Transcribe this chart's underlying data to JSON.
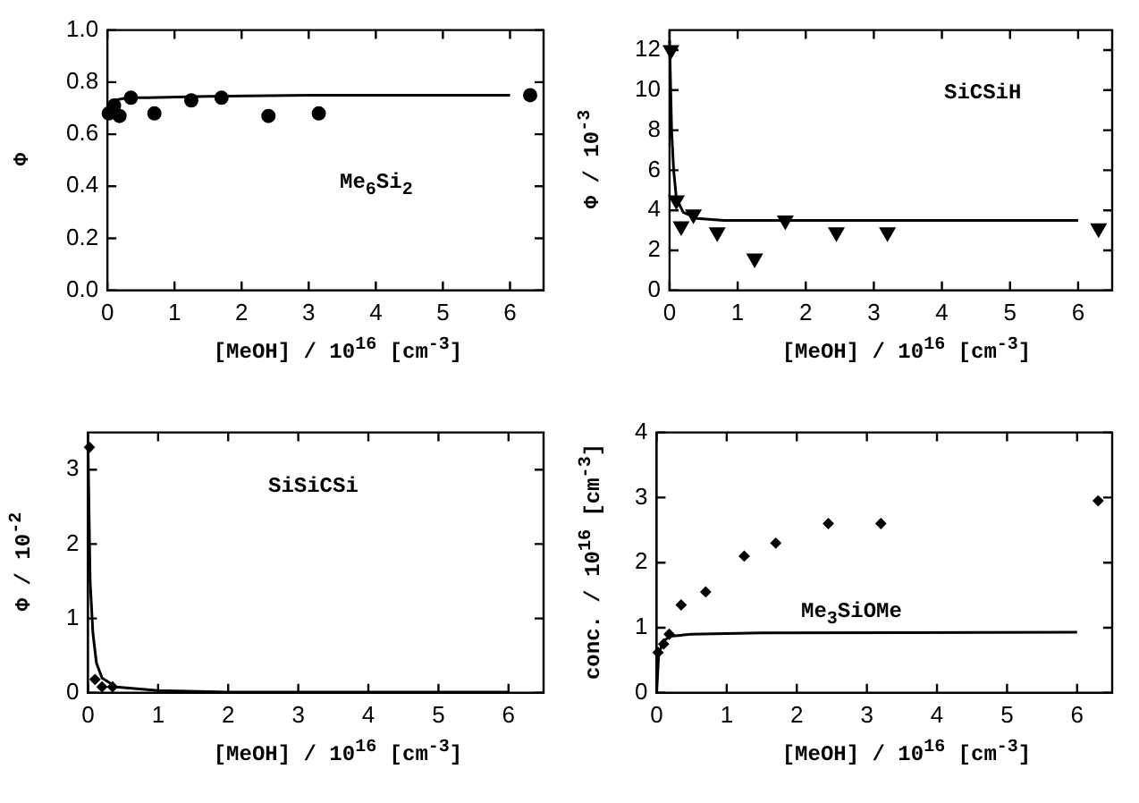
{
  "chart_data": [
    {
      "type": "scatter",
      "xlabel": "[MeOH] / 10$^{16}$ [cm$^{-3}$]",
      "ylabel": "Φ",
      "annotations": [
        "Me$_{6}$Si$_{2}$"
      ],
      "xlim": [
        0,
        6.5
      ],
      "xticks": [
        0,
        1,
        2,
        3,
        4,
        5,
        6
      ],
      "ylim": [
        0,
        1
      ],
      "yticks": [
        {
          "value": 0,
          "label": "0.0"
        },
        {
          "value": 0.2,
          "label": "0.2"
        },
        {
          "value": 0.4,
          "label": "0.4"
        },
        {
          "value": 0.6,
          "label": "0.6"
        },
        {
          "value": 0.8,
          "label": "0.8"
        },
        {
          "value": 1,
          "label": "1.0"
        }
      ],
      "grid": false,
      "legend": false,
      "series": [
        {
          "type": "scatter",
          "marker": "circle",
          "color": "#000000",
          "x": [
            0.02,
            0.1,
            0.18,
            0.35,
            0.7,
            1.25,
            1.7,
            2.4,
            3.15,
            6.3
          ],
          "values": [
            0.68,
            0.71,
            0.67,
            0.74,
            0.68,
            0.73,
            0.74,
            0.67,
            0.68,
            0.75
          ]
        },
        {
          "type": "line",
          "marker": "none",
          "color": "#000000",
          "x": [
            0,
            0.05,
            0.1,
            0.3,
            0.6,
            1.5,
            3,
            6
          ],
          "values": [
            0.69,
            0.72,
            0.73,
            0.74,
            0.74,
            0.745,
            0.75,
            0.75
          ]
        }
      ]
    },
    {
      "type": "scatter",
      "xlabel": "[MeOH] / 10$^{16}$ [cm$^{-3}$]",
      "ylabel": "Φ / 10$^{-3}$",
      "annotations": [
        "SiCSiH"
      ],
      "xlim": [
        0,
        6.5
      ],
      "xticks": [
        0,
        1,
        2,
        3,
        4,
        5,
        6
      ],
      "ylim": [
        0,
        13
      ],
      "yticks": [
        0,
        2,
        4,
        6,
        8,
        10,
        12
      ],
      "grid": false,
      "legend": false,
      "series": [
        {
          "type": "scatter",
          "marker": "triangle",
          "color": "#000000",
          "x": [
            0.02,
            0.1,
            0.17,
            0.35,
            0.7,
            1.25,
            1.7,
            2.45,
            3.2,
            6.3
          ],
          "values": [
            12,
            4.5,
            3.2,
            3.8,
            2.9,
            1.6,
            3.5,
            2.9,
            2.9,
            3.1
          ]
        },
        {
          "type": "line",
          "marker": "none",
          "color": "#000000",
          "x": [
            0,
            0.03,
            0.06,
            0.1,
            0.2,
            0.4,
            0.8,
            2,
            6
          ],
          "values": [
            12.5,
            8,
            6,
            4.6,
            3.9,
            3.6,
            3.5,
            3.5,
            3.5
          ]
        }
      ]
    },
    {
      "type": "scatter",
      "xlabel": "[MeOH] / 10$^{16}$ [cm$^{-3}$]",
      "ylabel": "Φ / 10$^{-2}$",
      "annotations": [
        "SiSiCSi"
      ],
      "xlim": [
        0,
        6.5
      ],
      "xticks": [
        0,
        1,
        2,
        3,
        4,
        5,
        6
      ],
      "ylim": [
        0,
        3.5
      ],
      "yticks": [
        0,
        1,
        2,
        3
      ],
      "grid": false,
      "legend": false,
      "series": [
        {
          "type": "scatter",
          "marker": "diamond",
          "color": "#000000",
          "x": [
            0.02,
            0.1,
            0.2,
            0.35
          ],
          "values": [
            3.3,
            0.18,
            0.08,
            0.08
          ]
        },
        {
          "type": "line",
          "marker": "none",
          "color": "#000000",
          "x": [
            0,
            0.03,
            0.07,
            0.12,
            0.2,
            0.4,
            1,
            2,
            6
          ],
          "values": [
            3.3,
            1.5,
            0.8,
            0.4,
            0.2,
            0.08,
            0.03,
            0.01,
            0.01
          ]
        }
      ]
    },
    {
      "type": "scatter",
      "xlabel": "[MeOH] / 10$^{16}$ [cm$^{-3}$]",
      "ylabel": "conc. / 10$^{16}$ [cm$^{-3}$]",
      "annotations": [
        "Me$_{3}$SiOMe"
      ],
      "xlim": [
        0,
        6.5
      ],
      "xticks": [
        0,
        1,
        2,
        3,
        4,
        5,
        6
      ],
      "ylim": [
        0,
        4
      ],
      "yticks": [
        0,
        1,
        2,
        3,
        4
      ],
      "grid": false,
      "legend": false,
      "series": [
        {
          "type": "scatter",
          "marker": "diamond",
          "color": "#000000",
          "x": [
            0.02,
            0.1,
            0.18,
            0.35,
            0.7,
            1.25,
            1.7,
            2.45,
            3.2,
            6.3
          ],
          "values": [
            0.62,
            0.75,
            0.9,
            1.35,
            1.55,
            2.1,
            2.3,
            2.6,
            2.6,
            2.95
          ]
        },
        {
          "type": "line",
          "marker": "none",
          "color": "#000000",
          "x": [
            0,
            0.03,
            0.1,
            0.2,
            0.5,
            1.5,
            6
          ],
          "values": [
            0,
            0.6,
            0.8,
            0.87,
            0.9,
            0.92,
            0.93
          ]
        }
      ]
    }
  ]
}
